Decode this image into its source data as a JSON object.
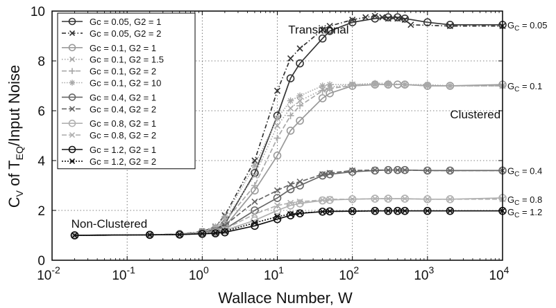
{
  "chart_data": {
    "type": "line",
    "title": "",
    "xlabel": "Wallace Number, W",
    "ylabel": "C",
    "ylabel_sub": "V",
    "ylabel_mid": " of T",
    "ylabel_sub2": "EQ",
    "ylabel_end": "/Input Noise",
    "x_scale": "log",
    "xlim": [
      0.01,
      10000
    ],
    "ylim": [
      0,
      10
    ],
    "x_ticks": [
      {
        "base": "10",
        "exp": "-2",
        "value": 0.01
      },
      {
        "base": "10",
        "exp": "-1",
        "value": 0.1
      },
      {
        "base": "10",
        "exp": "0",
        "value": 1
      },
      {
        "base": "10",
        "exp": "1",
        "value": 10
      },
      {
        "base": "10",
        "exp": "2",
        "value": 100
      },
      {
        "base": "10",
        "exp": "3",
        "value": 1000
      },
      {
        "base": "10",
        "exp": "4",
        "value": 10000
      }
    ],
    "y_ticks": [
      "0",
      "2",
      "4",
      "6",
      "8",
      "10"
    ],
    "grid": true,
    "legend_position": "top-left",
    "annotations": [
      {
        "text": "Transitional",
        "x": 14,
        "y": 9.1
      },
      {
        "text": "Clustered",
        "x": 2000,
        "y": 5.7
      },
      {
        "text": "Non-Clustered",
        "x": 0.018,
        "y": 1.3
      }
    ],
    "end_labels": [
      {
        "main": "G",
        "sub": "C",
        "rest": " = 0.05",
        "y": 9.45
      },
      {
        "main": "G",
        "sub": "C",
        "rest": " = 0.1",
        "y": 7.0
      },
      {
        "main": "G",
        "sub": "C",
        "rest": " = 0.4",
        "y": 3.6
      },
      {
        "main": "G",
        "sub": "C",
        "rest": " = 0.8",
        "y": 2.45
      },
      {
        "main": "G",
        "sub": "C",
        "rest": " = 1.2",
        "y": 1.95
      }
    ],
    "series": [
      {
        "name": "Gc = 0.05, G2 = 1",
        "color": "#333333",
        "marker": "circle",
        "dash": "",
        "x": [
          0.02,
          0.2,
          0.5,
          1,
          1.5,
          2,
          5,
          10,
          15,
          20,
          40,
          50,
          100,
          200,
          300,
          400,
          500,
          1000,
          2000,
          10000
        ],
        "y": [
          1.0,
          1.02,
          1.05,
          1.12,
          1.25,
          1.45,
          3.5,
          5.8,
          7.3,
          7.9,
          8.9,
          9.2,
          9.55,
          9.7,
          9.75,
          9.75,
          9.7,
          9.55,
          9.45,
          9.45
        ]
      },
      {
        "name": "Gc = 0.05, G2 = 2",
        "color": "#333333",
        "marker": "x",
        "dash": "6,3,1.5,3",
        "x": [
          0.02,
          0.2,
          0.5,
          1,
          1.5,
          2,
          5,
          10,
          15,
          20,
          40,
          50,
          100,
          150,
          200,
          250,
          300,
          400,
          500,
          600,
          2000,
          10000
        ],
        "y": [
          1.0,
          1.02,
          1.05,
          1.15,
          1.35,
          1.8,
          4.0,
          6.8,
          8.1,
          8.5,
          9.25,
          9.4,
          9.65,
          9.75,
          9.8,
          9.75,
          9.7,
          9.7,
          9.65,
          9.45,
          9.4,
          9.4
        ]
      },
      {
        "name": "Gc = 0.1, G2 = 1",
        "color": "#9a9a9a",
        "marker": "circle",
        "dash": "",
        "x": [
          0.02,
          0.2,
          0.5,
          1,
          1.5,
          2,
          5,
          10,
          15,
          20,
          40,
          50,
          100,
          200,
          300,
          400,
          500,
          1000,
          2000,
          10000
        ],
        "y": [
          1.0,
          1.02,
          1.04,
          1.1,
          1.2,
          1.35,
          2.8,
          4.2,
          5.2,
          5.6,
          6.5,
          6.7,
          7.0,
          7.05,
          7.05,
          7.05,
          7.05,
          7.0,
          7.0,
          7.05
        ]
      },
      {
        "name": "Gc = 0.1, G2 = 1.5",
        "color": "#a8a8a8",
        "marker": "x",
        "dash": "1.5,2.5",
        "x": [
          0.02,
          0.2,
          0.5,
          1,
          1.5,
          2,
          5,
          10,
          15,
          20,
          40,
          50,
          100,
          200,
          300,
          500,
          1000,
          2000,
          10000
        ],
        "y": [
          1.0,
          1.02,
          1.05,
          1.12,
          1.3,
          1.6,
          3.4,
          5.4,
          6.1,
          6.4,
          6.85,
          6.95,
          7.05,
          7.05,
          7.05,
          7.05,
          7.0,
          7.0,
          7.0
        ]
      },
      {
        "name": "Gc = 0.1, G2 = 2",
        "color": "#a8a8a8",
        "marker": "plus",
        "dash": "7,3",
        "x": [
          0.02,
          0.2,
          0.5,
          1,
          1.5,
          2,
          5,
          10,
          15,
          20,
          40,
          50,
          100,
          200,
          300,
          500,
          1000,
          2000,
          10000
        ],
        "y": [
          1.0,
          1.02,
          1.05,
          1.12,
          1.3,
          1.55,
          3.0,
          4.9,
          5.8,
          6.2,
          6.8,
          6.9,
          7.0,
          7.05,
          7.05,
          7.05,
          7.0,
          7.0,
          7.0
        ]
      },
      {
        "name": "Gc = 0.1, G2 = 10",
        "color": "#a8a8a8",
        "marker": "star",
        "dash": "1.5,2",
        "x": [
          0.02,
          0.2,
          0.5,
          1,
          1.5,
          2,
          5,
          10,
          15,
          20,
          40,
          50,
          100,
          200,
          300,
          500,
          1000,
          2000,
          10000
        ],
        "y": [
          1.0,
          1.02,
          1.05,
          1.15,
          1.35,
          1.75,
          3.8,
          5.7,
          6.4,
          6.6,
          7.0,
          7.05,
          7.05,
          7.1,
          7.1,
          7.05,
          7.05,
          7.0,
          7.0
        ]
      },
      {
        "name": "Gc = 0.4, G2 = 1",
        "color": "#666666",
        "marker": "circle",
        "dash": "",
        "x": [
          0.02,
          0.2,
          0.5,
          1,
          1.5,
          2,
          5,
          10,
          15,
          20,
          40,
          50,
          100,
          200,
          300,
          400,
          500,
          1000,
          2000,
          10000
        ],
        "y": [
          1.0,
          1.02,
          1.04,
          1.08,
          1.15,
          1.25,
          2.0,
          2.5,
          2.85,
          3.0,
          3.4,
          3.45,
          3.55,
          3.6,
          3.62,
          3.62,
          3.62,
          3.6,
          3.6,
          3.6
        ]
      },
      {
        "name": "Gc = 0.4, G2 = 2",
        "color": "#666666",
        "marker": "x",
        "dash": "7,3",
        "x": [
          0.02,
          0.2,
          0.5,
          1,
          1.5,
          2,
          5,
          10,
          15,
          20,
          40,
          50,
          100,
          200,
          300,
          400,
          500,
          1000,
          2000,
          10000
        ],
        "y": [
          1.0,
          1.02,
          1.05,
          1.1,
          1.2,
          1.4,
          2.35,
          2.8,
          3.05,
          3.15,
          3.45,
          3.5,
          3.6,
          3.62,
          3.62,
          3.62,
          3.62,
          3.6,
          3.6,
          3.6
        ]
      },
      {
        "name": "Gc = 0.8, G2 = 1",
        "color": "#b0b0b0",
        "marker": "circle",
        "dash": "",
        "x": [
          0.02,
          0.2,
          0.5,
          1,
          1.5,
          2,
          5,
          10,
          15,
          20,
          40,
          50,
          100,
          200,
          300,
          500,
          1000,
          2000,
          10000
        ],
        "y": [
          1.0,
          1.02,
          1.04,
          1.08,
          1.12,
          1.2,
          1.6,
          2.0,
          2.2,
          2.28,
          2.4,
          2.42,
          2.45,
          2.47,
          2.47,
          2.47,
          2.45,
          2.45,
          2.5
        ]
      },
      {
        "name": "Gc = 0.8, G2 = 2",
        "color": "#b0b0b0",
        "marker": "x",
        "dash": "7,3",
        "x": [
          0.02,
          0.2,
          0.5,
          1,
          1.5,
          2,
          5,
          10,
          15,
          20,
          40,
          50,
          100,
          200,
          300,
          500,
          1000,
          2000,
          10000
        ],
        "y": [
          1.0,
          1.02,
          1.05,
          1.1,
          1.15,
          1.25,
          1.85,
          2.2,
          2.3,
          2.35,
          2.42,
          2.45,
          2.45,
          2.47,
          2.47,
          2.47,
          2.45,
          2.45,
          2.45
        ]
      },
      {
        "name": "Gc = 1.2, G2 = 1",
        "color": "#111111",
        "marker": "circle",
        "dash": "",
        "x": [
          0.02,
          0.2,
          0.5,
          1,
          1.5,
          2,
          5,
          10,
          15,
          20,
          40,
          50,
          100,
          200,
          300,
          400,
          500,
          1000,
          2000,
          10000
        ],
        "y": [
          1.0,
          1.02,
          1.03,
          1.06,
          1.08,
          1.12,
          1.38,
          1.65,
          1.8,
          1.88,
          1.95,
          1.96,
          1.97,
          1.98,
          1.98,
          1.98,
          1.98,
          1.98,
          1.98,
          1.98
        ]
      },
      {
        "name": "Gc = 1.2, G2 = 2",
        "color": "#111111",
        "marker": "x",
        "dash": "2,2",
        "x": [
          0.02,
          0.2,
          0.5,
          1,
          1.5,
          2,
          5,
          10,
          15,
          20,
          40,
          50,
          100,
          200,
          300,
          400,
          500,
          1000,
          2000,
          10000
        ],
        "y": [
          1.0,
          1.02,
          1.03,
          1.07,
          1.1,
          1.16,
          1.5,
          1.75,
          1.85,
          1.9,
          1.95,
          1.96,
          1.97,
          1.98,
          1.98,
          1.98,
          1.98,
          1.98,
          1.98,
          1.98
        ]
      }
    ]
  }
}
